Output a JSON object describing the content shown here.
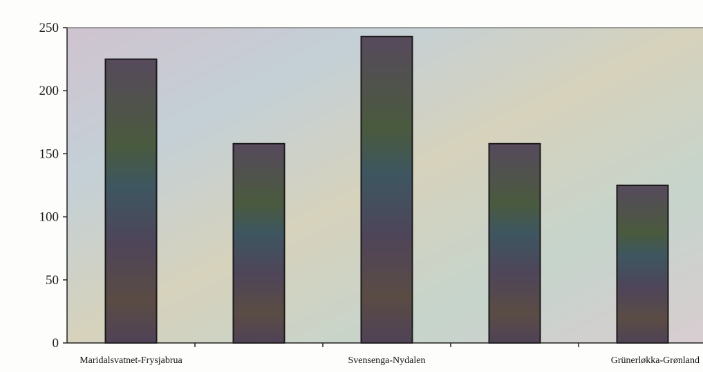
{
  "chart_data": {
    "type": "bar",
    "categories": [
      "Maridalsvatnet-Frysjabrua",
      "",
      "Svensenga-Nydalen",
      "",
      "Grünerløkka-Grønland"
    ],
    "values": [
      225,
      158,
      243,
      158,
      125
    ],
    "ylim": [
      0,
      250
    ],
    "yticks": [
      0,
      50,
      100,
      150,
      200,
      250
    ],
    "title": "",
    "xlabel": "",
    "ylabel": "",
    "grid": false,
    "legend": "none"
  },
  "colors": {
    "bar_fill": "#4a3f54",
    "bar_stroke": "#1a1a1a",
    "axis": "#222222",
    "plot_bg": "#c9cfc0"
  }
}
